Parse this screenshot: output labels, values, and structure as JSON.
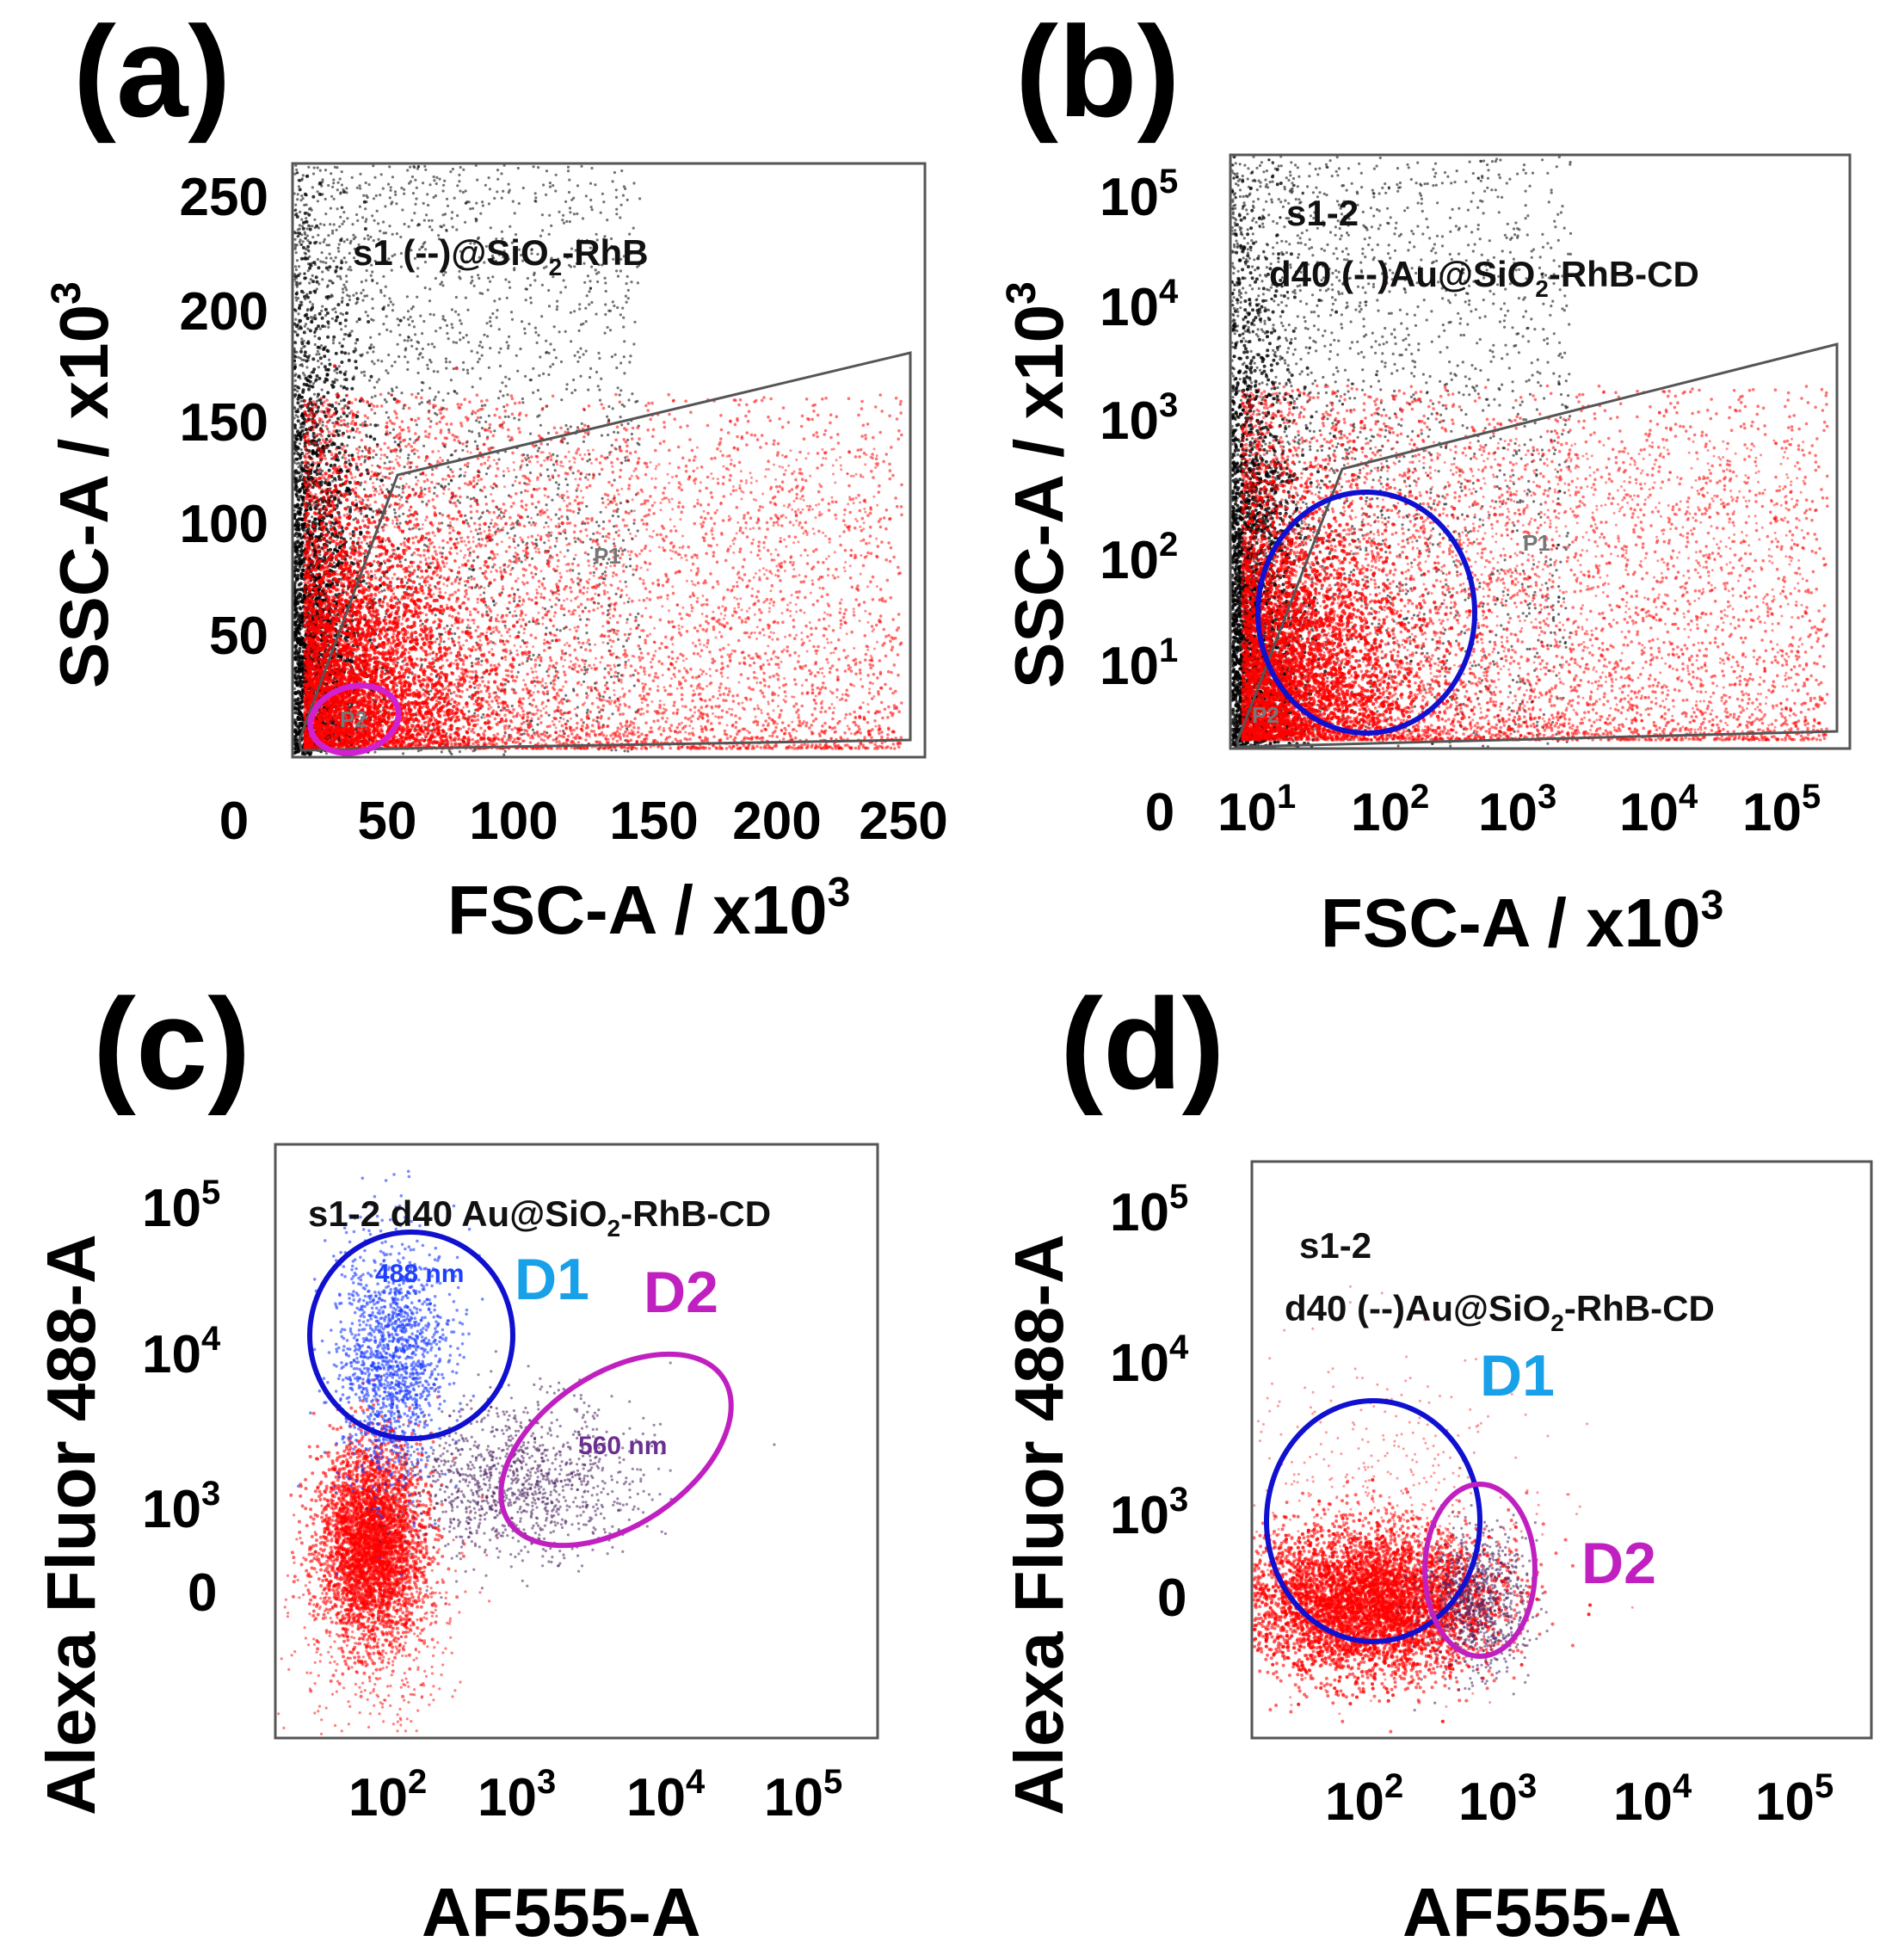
{
  "panels": {
    "a": {
      "letter": "(a)",
      "annotation_main": "s1 (--)@SiO",
      "annotation_sub": "2",
      "annotation_tail": "-RhB",
      "gate": "P1",
      "gate_small": "P2",
      "x_title_main": "FSC-A / x10",
      "x_title_sup": "3",
      "y_title_main": "SSC-A / x10",
      "y_title_sup": "3",
      "x_ticks": [
        "0",
        "50",
        "100",
        "150",
        "200",
        "250"
      ],
      "y_ticks": [
        "250",
        "200",
        "150",
        "100",
        "50"
      ]
    },
    "b": {
      "letter": "(b)",
      "annotation_line1": "s1-2",
      "annotation_line2_main": "d40 (--)Au@SiO",
      "annotation_line2_sub": "2",
      "annotation_line2_tail": "-RhB-CD",
      "gate": "P1",
      "gate_small": "P2",
      "x_title_main": "FSC-A / x10",
      "x_title_sup": "3",
      "y_title_main": "SSC-A / x10",
      "y_title_sup": "3",
      "x_zero": "0",
      "x_ticks_base": [
        "10",
        "10",
        "10",
        "10",
        "10"
      ],
      "x_ticks_exp": [
        "1",
        "2",
        "3",
        "4",
        "5"
      ],
      "y_ticks_base": [
        "10",
        "10",
        "10",
        "10",
        "10"
      ],
      "y_ticks_exp": [
        "5",
        "4",
        "3",
        "2",
        "1"
      ]
    },
    "c": {
      "letter": "(c)",
      "annotation_main": "s1-2 d40 Au@SiO",
      "annotation_sub": "2",
      "annotation_tail": "-RhB-CD",
      "d1_label": "D1",
      "d2_label": "D2",
      "d1_nm": "488 nm",
      "d2_nm": "560 nm",
      "x_title": "AF555-A",
      "y_title": "Alexa Fluor  488-A",
      "x_ticks_base": [
        "10",
        "10",
        "10",
        "10"
      ],
      "x_ticks_exp": [
        "2",
        "3",
        "4",
        "5"
      ],
      "y_ticks_base": [
        "10",
        "10",
        "10"
      ],
      "y_ticks_exp": [
        "5",
        "4",
        "3"
      ],
      "y_zero": "0"
    },
    "d": {
      "letter": "(d)",
      "annotation_line1": "s1-2",
      "annotation_line2_main": "d40 (--)Au@SiO",
      "annotation_line2_sub": "2",
      "annotation_line2_tail": "-RhB-CD",
      "d1_label": "D1",
      "d2_label": "D2",
      "x_title": "AF555-A",
      "y_title": "Alexa Fluor  488-A",
      "x_ticks_base": [
        "10",
        "10",
        "10",
        "10"
      ],
      "x_ticks_exp": [
        "2",
        "3",
        "4",
        "5"
      ],
      "y_ticks_base": [
        "10",
        "10",
        "10"
      ],
      "y_ticks_exp": [
        "5",
        "4",
        "3"
      ],
      "y_zero": "0"
    }
  },
  "colors": {
    "gated_events": "#ff0000",
    "ungated_events": "#000000",
    "d1_events": "#1f3fff",
    "d2_events": "#4a2060",
    "d1_gate": "#1010d0",
    "d2_gate": "#c020c0",
    "d1_label": "#18a0e8",
    "d2_label": "#c020c0"
  },
  "chart_data": [
    {
      "type": "scatter",
      "panel": "a",
      "x_axis": "FSC-A / x10^3",
      "y_axis": "SSC-A / x10^3",
      "xlim": [
        0,
        250
      ],
      "ylim": [
        0,
        250
      ],
      "gates": [
        "P1",
        "P2"
      ]
    },
    {
      "type": "scatter",
      "panel": "b",
      "x_axis": "FSC-A / x10^3",
      "y_axis": "SSC-A / x10^3",
      "scale": "log",
      "gates": [
        "P1",
        "P2"
      ]
    },
    {
      "type": "scatter",
      "panel": "c",
      "x_axis": "AF555-A",
      "y_axis": "Alexa Fluor 488-A",
      "scale": "log",
      "gates": [
        "D1",
        "D2"
      ]
    },
    {
      "type": "scatter",
      "panel": "d",
      "x_axis": "AF555-A",
      "y_axis": "Alexa Fluor 488-A",
      "scale": "log",
      "gates": [
        "D1",
        "D2"
      ]
    }
  ]
}
